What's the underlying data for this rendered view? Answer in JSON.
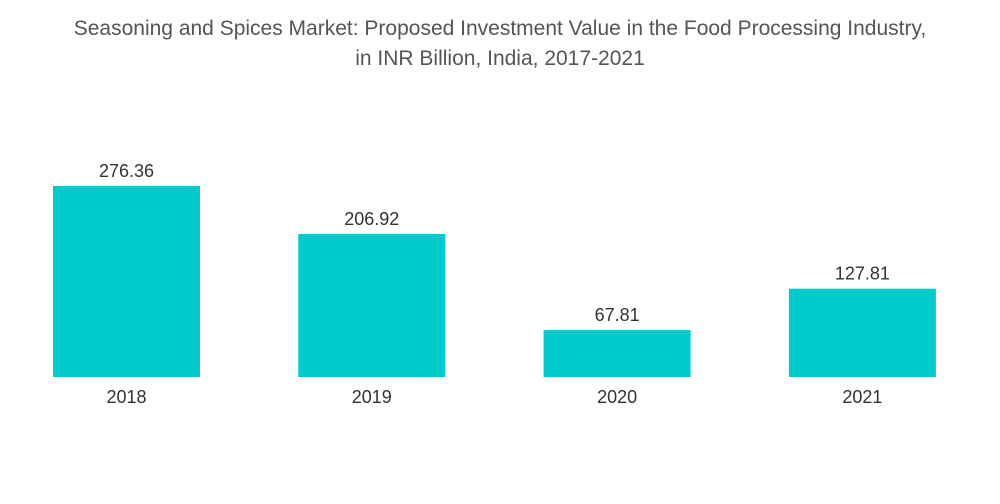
{
  "chart_data": {
    "type": "bar",
    "title": "Seasoning and Spices Market: Proposed Investment Value in the Food Processing Industry,",
    "subtitle": "in INR Billion, India, 2017-2021",
    "categories": [
      "2018",
      "2019",
      "2020",
      "2021"
    ],
    "values": [
      276.36,
      206.92,
      67.81,
      127.81
    ],
    "value_labels": [
      "276.36",
      "206.92",
      "67.81",
      "127.81"
    ],
    "xlabel": "",
    "ylabel": "",
    "ylim": [
      0,
      276.36
    ],
    "grid": false,
    "legend": "none",
    "bar_color": "#00CCCC"
  }
}
